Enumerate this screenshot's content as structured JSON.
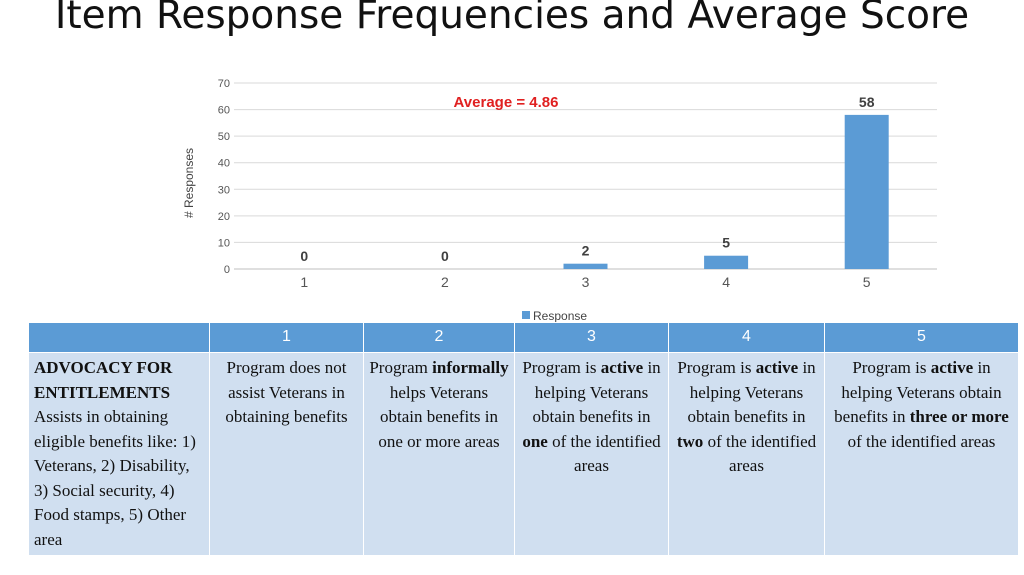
{
  "page": {
    "title": "Item Response Frequencies and Average Score"
  },
  "chart_data": {
    "type": "bar",
    "title": "",
    "annotation": "Average = 4.86",
    "annotation_color": "#e02020",
    "categories": [
      "1",
      "2",
      "3",
      "4",
      "5"
    ],
    "series": [
      {
        "name": "Response",
        "values": [
          0,
          0,
          2,
          5,
          58
        ],
        "color": "#5b9bd5"
      }
    ],
    "ylabel": "# Responses",
    "xlabel": "",
    "ylim": [
      0,
      70
    ],
    "yticks": [
      0,
      10,
      20,
      30,
      40,
      50,
      60,
      70
    ],
    "grid": true,
    "legend": "bottom",
    "data_labels": true
  },
  "table": {
    "header": [
      "",
      "1",
      "2",
      "3",
      "4",
      "5"
    ],
    "row": {
      "first": {
        "heading": "ADVOCACY FOR ENTITLEMENTS",
        "text": "Assists in obtaining eligible benefits like: 1) Veterans, 2) Disability, 3) Social security, 4) Food stamps, 5) Other area"
      },
      "c1": {
        "pre": "Program does not assist Veterans in obtaining benefits",
        "bold": "",
        "post": ""
      },
      "c2": {
        "pre": "Program ",
        "bold": "informally",
        "post": " helps Veterans obtain benefits in one or more areas"
      },
      "c3": {
        "pre": "Program is ",
        "bold": "active",
        "post": " in helping Veterans obtain benefits in ",
        "bold2": "one",
        "post2": " of the identified areas"
      },
      "c4": {
        "pre": "Program is ",
        "bold": "active",
        "post": " in helping Veterans obtain benefits in ",
        "bold2": "two",
        "post2": " of the identified areas"
      },
      "c5": {
        "pre": "Program is ",
        "bold": "active",
        "post": " in helping Veterans obtain benefits in ",
        "bold2": "three or more",
        "post2": " of the identified areas"
      }
    }
  }
}
